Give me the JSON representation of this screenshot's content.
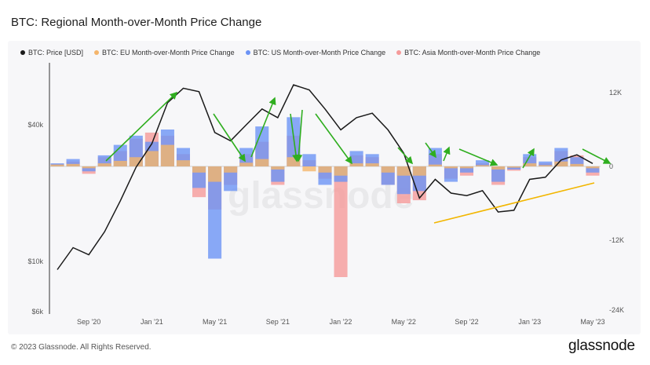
{
  "title": "BTC: Regional Month-over-Month Price Change",
  "footer": "© 2023 Glassnode. All Rights Reserved.",
  "brand": "glassnode",
  "watermark": "glassnode",
  "colors": {
    "price": "#1a1a1a",
    "eu": "#f4b56b",
    "us": "#6b93f5",
    "asia": "#f59a9a",
    "green_arrow": "#2fae1f",
    "orange_trend": "#f2b600"
  },
  "legend": [
    {
      "label": "BTC: Price [USD]",
      "color": "#1a1a1a"
    },
    {
      "label": "BTC: EU Month-over-Month Price Change",
      "color": "#f4b56b"
    },
    {
      "label": "BTC: US Month-over-Month Price Change",
      "color": "#6b93f5"
    },
    {
      "label": "BTC: Asia Month-over-Month Price Change",
      "color": "#f59a9a"
    }
  ],
  "chart_data": {
    "type": "line",
    "title": "BTC: Regional Month-over-Month Price Change",
    "x_ticks": [
      "Sep '20",
      "Jan '21",
      "May '21",
      "Sep '21",
      "Jan '22",
      "May '22",
      "Sep '22",
      "Jan '23",
      "May '23"
    ],
    "y_left_ticks": [
      "$40k",
      "$10k",
      "$6k"
    ],
    "y_left_scale": "log",
    "y_right_ticks": [
      "12K",
      "0",
      "-12K",
      "-24K"
    ],
    "y_right_range": [
      -24000,
      18000
    ],
    "x": [
      "2020-07",
      "2020-08",
      "2020-09",
      "2020-10",
      "2020-11",
      "2020-12",
      "2021-01",
      "2021-02",
      "2021-03",
      "2021-04",
      "2021-05",
      "2021-06",
      "2021-07",
      "2021-08",
      "2021-09",
      "2021-10",
      "2021-11",
      "2021-12",
      "2022-01",
      "2022-02",
      "2022-03",
      "2022-04",
      "2022-05",
      "2022-06",
      "2022-07",
      "2022-08",
      "2022-09",
      "2022-10",
      "2022-11",
      "2022-12",
      "2023-01",
      "2023-02",
      "2023-03",
      "2023-04",
      "2023-05"
    ],
    "series": [
      {
        "name": "BTC: Price [USD]",
        "axis": "left",
        "values": [
          9200,
          11500,
          10700,
          13500,
          18500,
          26000,
          33000,
          50000,
          58000,
          56000,
          37000,
          34000,
          40000,
          47000,
          43000,
          60000,
          57000,
          47000,
          38000,
          43000,
          45000,
          38000,
          30000,
          19000,
          23000,
          20000,
          19500,
          20500,
          16500,
          16800,
          23000,
          23500,
          28000,
          29500,
          27000
        ]
      },
      {
        "name": "BTC: EU Month-over-Month Price Change",
        "axis": "right",
        "values": [
          300,
          400,
          -300,
          500,
          900,
          1500,
          2500,
          3500,
          1000,
          -1000,
          -2500,
          -1000,
          600,
          1200,
          -500,
          1500,
          -800,
          -1000,
          -1500,
          500,
          500,
          -1000,
          -1500,
          -1500,
          300,
          -300,
          -300,
          200,
          -500,
          -200,
          500,
          200,
          800,
          400,
          -300
        ]
      },
      {
        "name": "BTC: US Month-over-Month Price Change",
        "axis": "right",
        "values": [
          500,
          1200,
          -800,
          1800,
          3500,
          5000,
          4000,
          6000,
          3000,
          -3500,
          -15000,
          -4000,
          3000,
          6500,
          -2500,
          8000,
          2000,
          -3000,
          -2500,
          2500,
          2000,
          -3000,
          -4500,
          -4000,
          3000,
          -2500,
          -1000,
          1000,
          -2500,
          -500,
          2000,
          800,
          3000,
          1500,
          -1000
        ]
      },
      {
        "name": "BTC: Asia Month-over-Month Price Change",
        "axis": "right",
        "values": [
          400,
          800,
          -1200,
          1500,
          2500,
          4500,
          5500,
          5000,
          2000,
          -5000,
          -7000,
          -3000,
          2000,
          4000,
          -3000,
          5000,
          1000,
          -2000,
          -18000,
          1800,
          1500,
          -3000,
          -6000,
          -5500,
          2000,
          -2000,
          -1500,
          500,
          -3000,
          -700,
          1500,
          500,
          2500,
          1800,
          -1500
        ]
      }
    ]
  }
}
